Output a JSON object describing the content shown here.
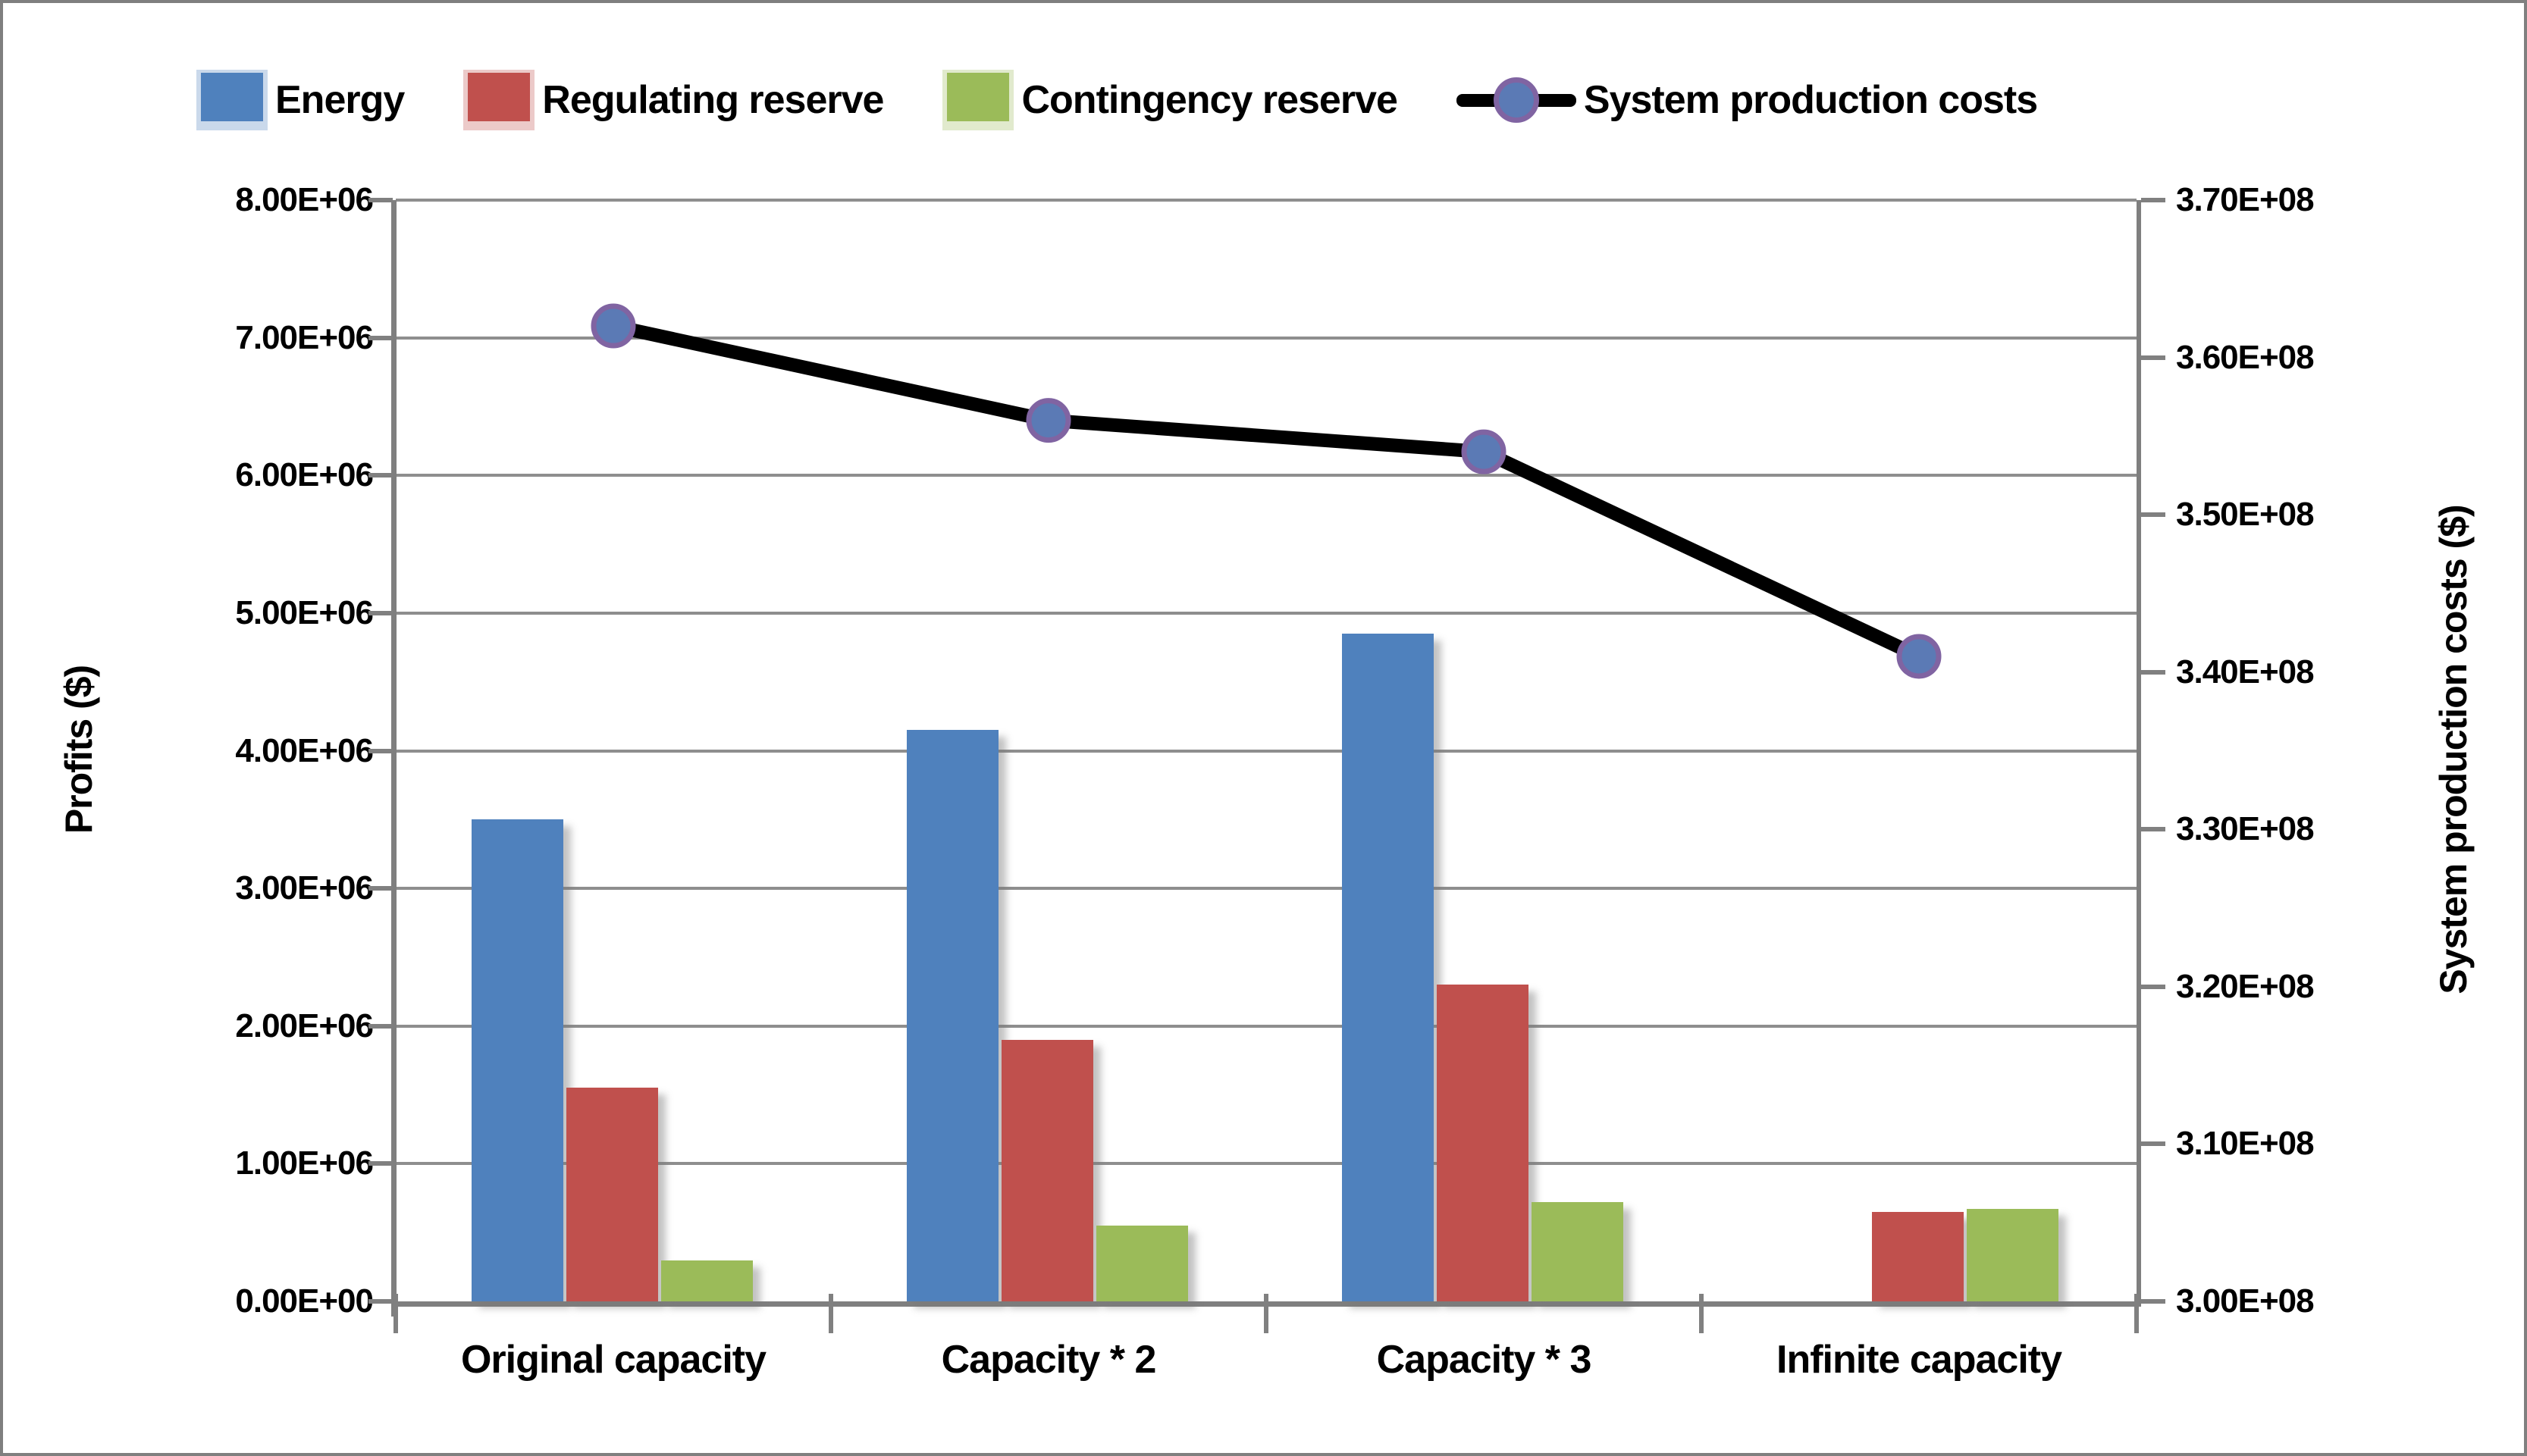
{
  "chart_data": {
    "type": "bar+line",
    "categories": [
      "Original capacity",
      "Capacity * 2",
      "Capacity * 3",
      "Infinite capacity"
    ],
    "series": [
      {
        "name": "Energy",
        "type": "bar",
        "axis": "left",
        "color": "#4F81BD",
        "values": [
          3500000,
          4150000,
          4850000,
          0
        ]
      },
      {
        "name": "Regulating reserve",
        "type": "bar",
        "axis": "left",
        "color": "#C0504D",
        "values": [
          1550000,
          1900000,
          2300000,
          650000
        ]
      },
      {
        "name": "Contingency reserve",
        "type": "bar",
        "axis": "left",
        "color": "#9BBB59",
        "values": [
          300000,
          550000,
          720000,
          670000
        ]
      },
      {
        "name": "System production costs",
        "type": "line",
        "axis": "right",
        "color": "#000000",
        "marker_fill": "#5B7AB5",
        "marker_ring": "#8064A2",
        "values": [
          362000000,
          356000000,
          354000000,
          341000000
        ]
      }
    ],
    "left_axis": {
      "title": "Profits ($)",
      "min": 0,
      "max": 8000000,
      "step": 1000000,
      "tick_labels": [
        "0.00E+00",
        "1.00E+06",
        "2.00E+06",
        "3.00E+06",
        "4.00E+06",
        "5.00E+06",
        "6.00E+06",
        "7.00E+06",
        "8.00E+06"
      ]
    },
    "right_axis": {
      "title": "System production costs ($)",
      "min": 300000000,
      "max": 370000000,
      "step": 10000000,
      "tick_labels": [
        "3.00E+08",
        "3.10E+08",
        "3.20E+08",
        "3.30E+08",
        "3.40E+08",
        "3.50E+08",
        "3.60E+08",
        "3.70E+08"
      ]
    },
    "legend_position": "top",
    "grid": "horizontal",
    "colors": {
      "grid": "#8e8e8e",
      "axis": "#7f7f7f",
      "text": "#000000",
      "background": "#ffffff"
    }
  }
}
